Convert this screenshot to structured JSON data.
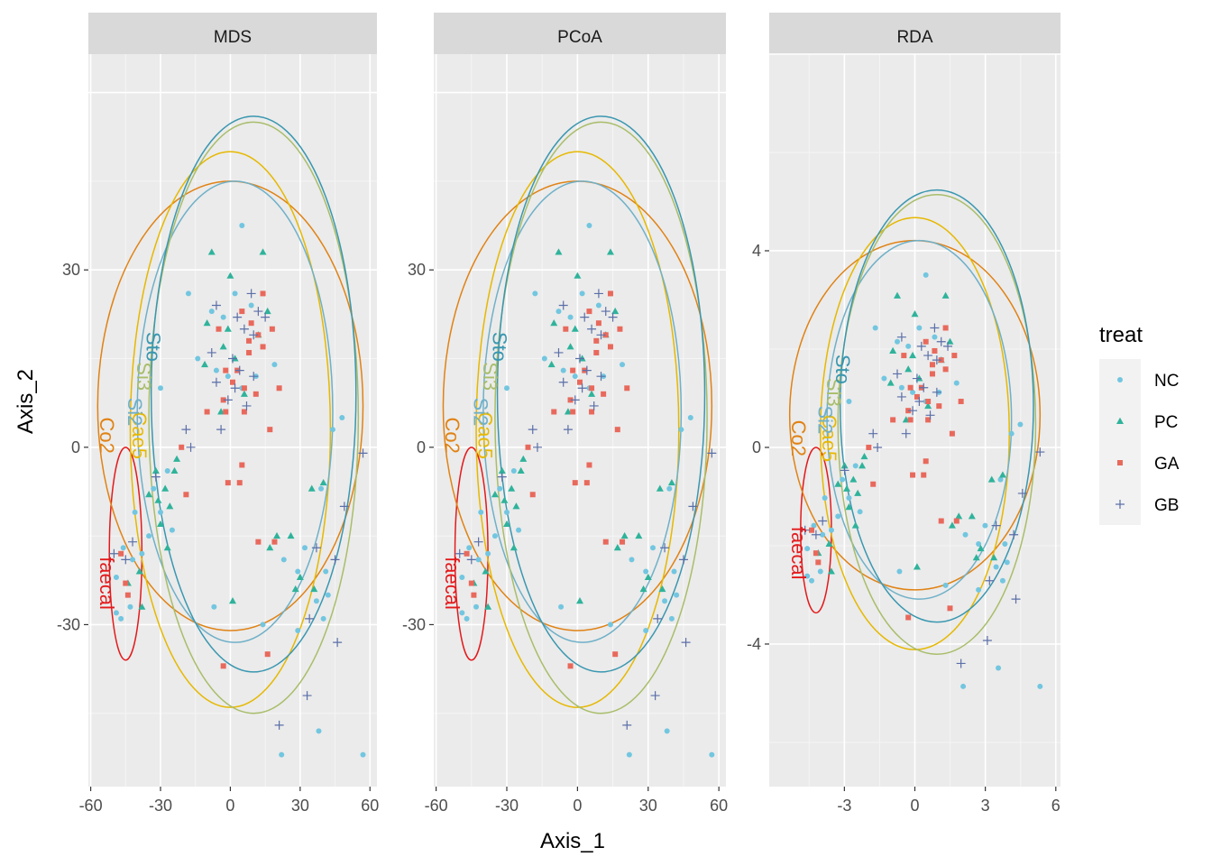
{
  "chart_data": {
    "type": "scatter",
    "xlabel": "Axis_1",
    "ylabel": "Axis_2",
    "legend": {
      "title": "treat",
      "placement": "right",
      "entries": [
        {
          "name": "NC",
          "shape": "circle",
          "color": "#72C6E0"
        },
        {
          "name": "PC",
          "shape": "triangle",
          "color": "#2FB39B"
        },
        {
          "name": "GA",
          "shape": "square",
          "color": "#E8695C"
        },
        {
          "name": "GB",
          "shape": "plus",
          "color": "#5B6FA8"
        }
      ]
    },
    "grid": true,
    "background": "#EBEBEB",
    "strip_background": "#D9D9D9",
    "groups": [
      {
        "name": "faecal",
        "color": "#E31A1C"
      },
      {
        "name": "Co2",
        "color": "#E08214"
      },
      {
        "name": "Cae5",
        "color": "#E6B800"
      },
      {
        "name": "Si2",
        "color": "#6FB0C8"
      },
      {
        "name": "Si3",
        "color": "#A8BD6A"
      },
      {
        "name": "Sto",
        "color": "#3A97B0"
      }
    ],
    "panels": [
      {
        "title": "MDS",
        "xlim": [
          -61,
          63
        ],
        "ylim": [
          -57.4,
          66.5
        ],
        "xticks": [
          -60,
          -30,
          0,
          30,
          60
        ],
        "yticks": [
          30,
          0,
          -30
        ],
        "show_y_ticks": true,
        "y_tick_labels": [
          "30",
          "0",
          "-30"
        ],
        "x_tick_labels": [
          "-60",
          "-30",
          "0",
          "30",
          "60"
        ]
      },
      {
        "title": "PCoA",
        "xlim": [
          -61,
          63
        ],
        "ylim": [
          -57.4,
          66.5
        ],
        "xticks": [
          -60,
          -30,
          0,
          30,
          60
        ],
        "yticks": [
          30,
          0,
          -30
        ],
        "show_y_ticks": true,
        "y_tick_labels": [
          "30",
          "0",
          "-30"
        ],
        "x_tick_labels": [
          "-60",
          "-30",
          "0",
          "30",
          "60"
        ]
      },
      {
        "title": "RDA",
        "xlim": [
          -6.2,
          6.2
        ],
        "ylim": [
          -6.9,
          8.0
        ],
        "xticks": [
          -3,
          0,
          3,
          6
        ],
        "yticks": [
          4,
          0,
          -4
        ],
        "show_y_ticks": true,
        "y_tick_labels": [
          "4",
          "0",
          "-4"
        ],
        "x_tick_labels": [
          "-3",
          "0",
          "3",
          "6"
        ]
      }
    ],
    "points": [
      {
        "x": 5,
        "y": 37.5,
        "treat": "NC"
      },
      {
        "x": -18,
        "y": 26,
        "treat": "NC"
      },
      {
        "x": 2,
        "y": 26,
        "treat": "NC"
      },
      {
        "x": 9,
        "y": 24,
        "treat": "NC"
      },
      {
        "x": -8,
        "y": 23,
        "treat": "NC"
      },
      {
        "x": -3,
        "y": 22,
        "treat": "NC"
      },
      {
        "x": -14,
        "y": 15,
        "treat": "NC"
      },
      {
        "x": -6,
        "y": 13,
        "treat": "NC"
      },
      {
        "x": 5,
        "y": 10,
        "treat": "NC"
      },
      {
        "x": -1,
        "y": 12,
        "treat": "NC"
      },
      {
        "x": 11,
        "y": 12,
        "treat": "NC"
      },
      {
        "x": 19,
        "y": 14,
        "treat": "NC"
      },
      {
        "x": -30,
        "y": 10,
        "treat": "NC"
      },
      {
        "x": -27,
        "y": -4,
        "treat": "NC"
      },
      {
        "x": -33,
        "y": -7,
        "treat": "NC"
      },
      {
        "x": -30,
        "y": -11,
        "treat": "NC"
      },
      {
        "x": -25,
        "y": -14,
        "treat": "NC"
      },
      {
        "x": -35,
        "y": -15,
        "treat": "NC"
      },
      {
        "x": -41,
        "y": -11,
        "treat": "NC"
      },
      {
        "x": -38,
        "y": -18,
        "treat": "NC"
      },
      {
        "x": -42,
        "y": -19,
        "treat": "NC"
      },
      {
        "x": -46,
        "y": -17,
        "treat": "NC"
      },
      {
        "x": -49,
        "y": -22,
        "treat": "NC"
      },
      {
        "x": -43,
        "y": -27,
        "treat": "NC"
      },
      {
        "x": -49,
        "y": -28,
        "treat": "NC"
      },
      {
        "x": -47,
        "y": -29,
        "treat": "NC"
      },
      {
        "x": 44,
        "y": 3,
        "treat": "NC"
      },
      {
        "x": 48,
        "y": 5,
        "treat": "NC"
      },
      {
        "x": 39,
        "y": -7,
        "treat": "NC"
      },
      {
        "x": 32,
        "y": -17,
        "treat": "NC"
      },
      {
        "x": 29,
        "y": -21,
        "treat": "NC"
      },
      {
        "x": 41,
        "y": -21,
        "treat": "NC"
      },
      {
        "x": 42,
        "y": -25,
        "treat": "NC"
      },
      {
        "x": 37,
        "y": -26,
        "treat": "NC"
      },
      {
        "x": 40,
        "y": -29,
        "treat": "NC"
      },
      {
        "x": 29,
        "y": -31,
        "treat": "NC"
      },
      {
        "x": 14,
        "y": -30,
        "treat": "NC"
      },
      {
        "x": -7,
        "y": -27,
        "treat": "NC"
      },
      {
        "x": 22,
        "y": -52,
        "treat": "NC"
      },
      {
        "x": 38,
        "y": -48,
        "treat": "NC"
      },
      {
        "x": 57,
        "y": -52,
        "treat": "NC"
      },
      {
        "x": 23,
        "y": -19,
        "treat": "NC"
      },
      {
        "x": -8,
        "y": 33,
        "treat": "PC"
      },
      {
        "x": 14,
        "y": 33,
        "treat": "PC"
      },
      {
        "x": 0,
        "y": 29,
        "treat": "PC"
      },
      {
        "x": -10,
        "y": 21,
        "treat": "PC"
      },
      {
        "x": -1,
        "y": 20,
        "treat": "PC"
      },
      {
        "x": 16,
        "y": 23,
        "treat": "PC"
      },
      {
        "x": -3,
        "y": 17,
        "treat": "PC"
      },
      {
        "x": -11,
        "y": 14,
        "treat": "PC"
      },
      {
        "x": 2,
        "y": 15,
        "treat": "PC"
      },
      {
        "x": 6,
        "y": 9,
        "treat": "PC"
      },
      {
        "x": -4,
        "y": 6,
        "treat": "PC"
      },
      {
        "x": -23,
        "y": -2,
        "treat": "PC"
      },
      {
        "x": -32,
        "y": -4,
        "treat": "PC"
      },
      {
        "x": -28,
        "y": -7,
        "treat": "PC"
      },
      {
        "x": -35,
        "y": -8,
        "treat": "PC"
      },
      {
        "x": -31,
        "y": -9,
        "treat": "PC"
      },
      {
        "x": -26,
        "y": -10,
        "treat": "PC"
      },
      {
        "x": -30,
        "y": -13,
        "treat": "PC"
      },
      {
        "x": -27,
        "y": -17,
        "treat": "PC"
      },
      {
        "x": -39,
        "y": -21,
        "treat": "PC"
      },
      {
        "x": -44,
        "y": -23,
        "treat": "PC"
      },
      {
        "x": -38,
        "y": -27,
        "treat": "PC"
      },
      {
        "x": 40,
        "y": -6,
        "treat": "PC"
      },
      {
        "x": 35,
        "y": -7,
        "treat": "PC"
      },
      {
        "x": 26,
        "y": -15,
        "treat": "PC"
      },
      {
        "x": 20,
        "y": -15,
        "treat": "PC"
      },
      {
        "x": 17,
        "y": -17,
        "treat": "PC"
      },
      {
        "x": 30,
        "y": -22,
        "treat": "PC"
      },
      {
        "x": 28,
        "y": -24,
        "treat": "PC"
      },
      {
        "x": 36,
        "y": -24,
        "treat": "PC"
      },
      {
        "x": 1,
        "y": -26,
        "treat": "PC"
      },
      {
        "x": -24,
        "y": -4,
        "treat": "PC"
      },
      {
        "x": 12,
        "y": 19,
        "treat": "PC"
      },
      {
        "x": 14,
        "y": 26,
        "treat": "GA"
      },
      {
        "x": 5,
        "y": 23,
        "treat": "GA"
      },
      {
        "x": 9,
        "y": 21,
        "treat": "GA"
      },
      {
        "x": -5,
        "y": 20,
        "treat": "GA"
      },
      {
        "x": 12,
        "y": 19,
        "treat": "GA"
      },
      {
        "x": 8,
        "y": 18,
        "treat": "GA"
      },
      {
        "x": 14,
        "y": 17,
        "treat": "GA"
      },
      {
        "x": 8,
        "y": 16,
        "treat": "GA"
      },
      {
        "x": 3,
        "y": 13,
        "treat": "GA"
      },
      {
        "x": 1,
        "y": 11,
        "treat": "GA"
      },
      {
        "x": 6,
        "y": 10,
        "treat": "GA"
      },
      {
        "x": 11,
        "y": 9,
        "treat": "GA"
      },
      {
        "x": 21,
        "y": 10,
        "treat": "GA"
      },
      {
        "x": 6,
        "y": 6,
        "treat": "GA"
      },
      {
        "x": -2,
        "y": 6,
        "treat": "GA"
      },
      {
        "x": -3,
        "y": 8,
        "treat": "GA"
      },
      {
        "x": -10,
        "y": 6,
        "treat": "GA"
      },
      {
        "x": 17,
        "y": 3,
        "treat": "GA"
      },
      {
        "x": -21,
        "y": 0,
        "treat": "GA"
      },
      {
        "x": 5,
        "y": -3,
        "treat": "GA"
      },
      {
        "x": -1,
        "y": -6,
        "treat": "GA"
      },
      {
        "x": 4,
        "y": -6,
        "treat": "GA"
      },
      {
        "x": 12,
        "y": -16,
        "treat": "GA"
      },
      {
        "x": 19,
        "y": -16,
        "treat": "GA"
      },
      {
        "x": 16,
        "y": -35,
        "treat": "GA"
      },
      {
        "x": -3,
        "y": -37,
        "treat": "GA"
      },
      {
        "x": -19,
        "y": -8,
        "treat": "GA"
      },
      {
        "x": -45,
        "y": -23,
        "treat": "GA"
      },
      {
        "x": -47,
        "y": -18,
        "treat": "GA"
      },
      {
        "x": -44,
        "y": -25,
        "treat": "GA"
      },
      {
        "x": 18,
        "y": 20,
        "treat": "GA"
      },
      {
        "x": -2,
        "y": 13,
        "treat": "GA"
      },
      {
        "x": 9,
        "y": 26,
        "treat": "GB"
      },
      {
        "x": -6,
        "y": 24,
        "treat": "GB"
      },
      {
        "x": 12,
        "y": 23,
        "treat": "GB"
      },
      {
        "x": 3,
        "y": 22,
        "treat": "GB"
      },
      {
        "x": 6,
        "y": 20,
        "treat": "GB"
      },
      {
        "x": 10,
        "y": 19,
        "treat": "GB"
      },
      {
        "x": -8,
        "y": 16,
        "treat": "GB"
      },
      {
        "x": 1,
        "y": 15,
        "treat": "GB"
      },
      {
        "x": 4,
        "y": 13,
        "treat": "GB"
      },
      {
        "x": 10,
        "y": 12,
        "treat": "GB"
      },
      {
        "x": -6,
        "y": 11,
        "treat": "GB"
      },
      {
        "x": 2,
        "y": 10,
        "treat": "GB"
      },
      {
        "x": -1,
        "y": 8,
        "treat": "GB"
      },
      {
        "x": 7,
        "y": 7,
        "treat": "GB"
      },
      {
        "x": -4,
        "y": 3,
        "treat": "GB"
      },
      {
        "x": -19,
        "y": 3,
        "treat": "GB"
      },
      {
        "x": -32,
        "y": -5,
        "treat": "GB"
      },
      {
        "x": -42,
        "y": -16,
        "treat": "GB"
      },
      {
        "x": -45,
        "y": -19,
        "treat": "GB"
      },
      {
        "x": -50,
        "y": -18,
        "treat": "GB"
      },
      {
        "x": 57,
        "y": -1,
        "treat": "GB"
      },
      {
        "x": 49,
        "y": -10,
        "treat": "GB"
      },
      {
        "x": 37,
        "y": -17,
        "treat": "GB"
      },
      {
        "x": 45,
        "y": -19,
        "treat": "GB"
      },
      {
        "x": 46,
        "y": -33,
        "treat": "GB"
      },
      {
        "x": 34,
        "y": -29,
        "treat": "GB"
      },
      {
        "x": 33,
        "y": -42,
        "treat": "GB"
      },
      {
        "x": 21,
        "y": -47,
        "treat": "GB"
      },
      {
        "x": 15,
        "y": 22,
        "treat": "GB"
      },
      {
        "x": -17,
        "y": 0,
        "treat": "GB"
      }
    ],
    "ellipses": [
      {
        "group": "faecal",
        "cx": -45,
        "cy": -18,
        "rx": 7,
        "ry": 18
      },
      {
        "group": "Co2",
        "cx": 0,
        "cy": 7,
        "rx": 57,
        "ry": 38
      },
      {
        "group": "Cae5",
        "cx": 0,
        "cy": 3,
        "rx": 43,
        "ry": 47
      },
      {
        "group": "Si2",
        "cx": 2,
        "cy": 6,
        "rx": 42,
        "ry": 39
      },
      {
        "group": "Si3",
        "cx": 10,
        "cy": 5,
        "rx": 45,
        "ry": 50
      },
      {
        "group": "Sto",
        "cx": 10,
        "cy": 9,
        "rx": 44,
        "ry": 47
      }
    ],
    "ellipse_labels": [
      {
        "group": "faecal",
        "text": "faecal",
        "x": -56,
        "y": -23
      },
      {
        "group": "Co2",
        "text": "Co2",
        "x": -56,
        "y": 2
      },
      {
        "group": "Cae5",
        "text": "Cae5",
        "x": -42,
        "y": 2
      },
      {
        "group": "Si2",
        "text": "Si2",
        "x": -44,
        "y": 6
      },
      {
        "group": "Si3",
        "text": "Si3",
        "x": -40,
        "y": 12
      },
      {
        "group": "Sto",
        "text": "Sto",
        "x": -36,
        "y": 17
      }
    ]
  }
}
